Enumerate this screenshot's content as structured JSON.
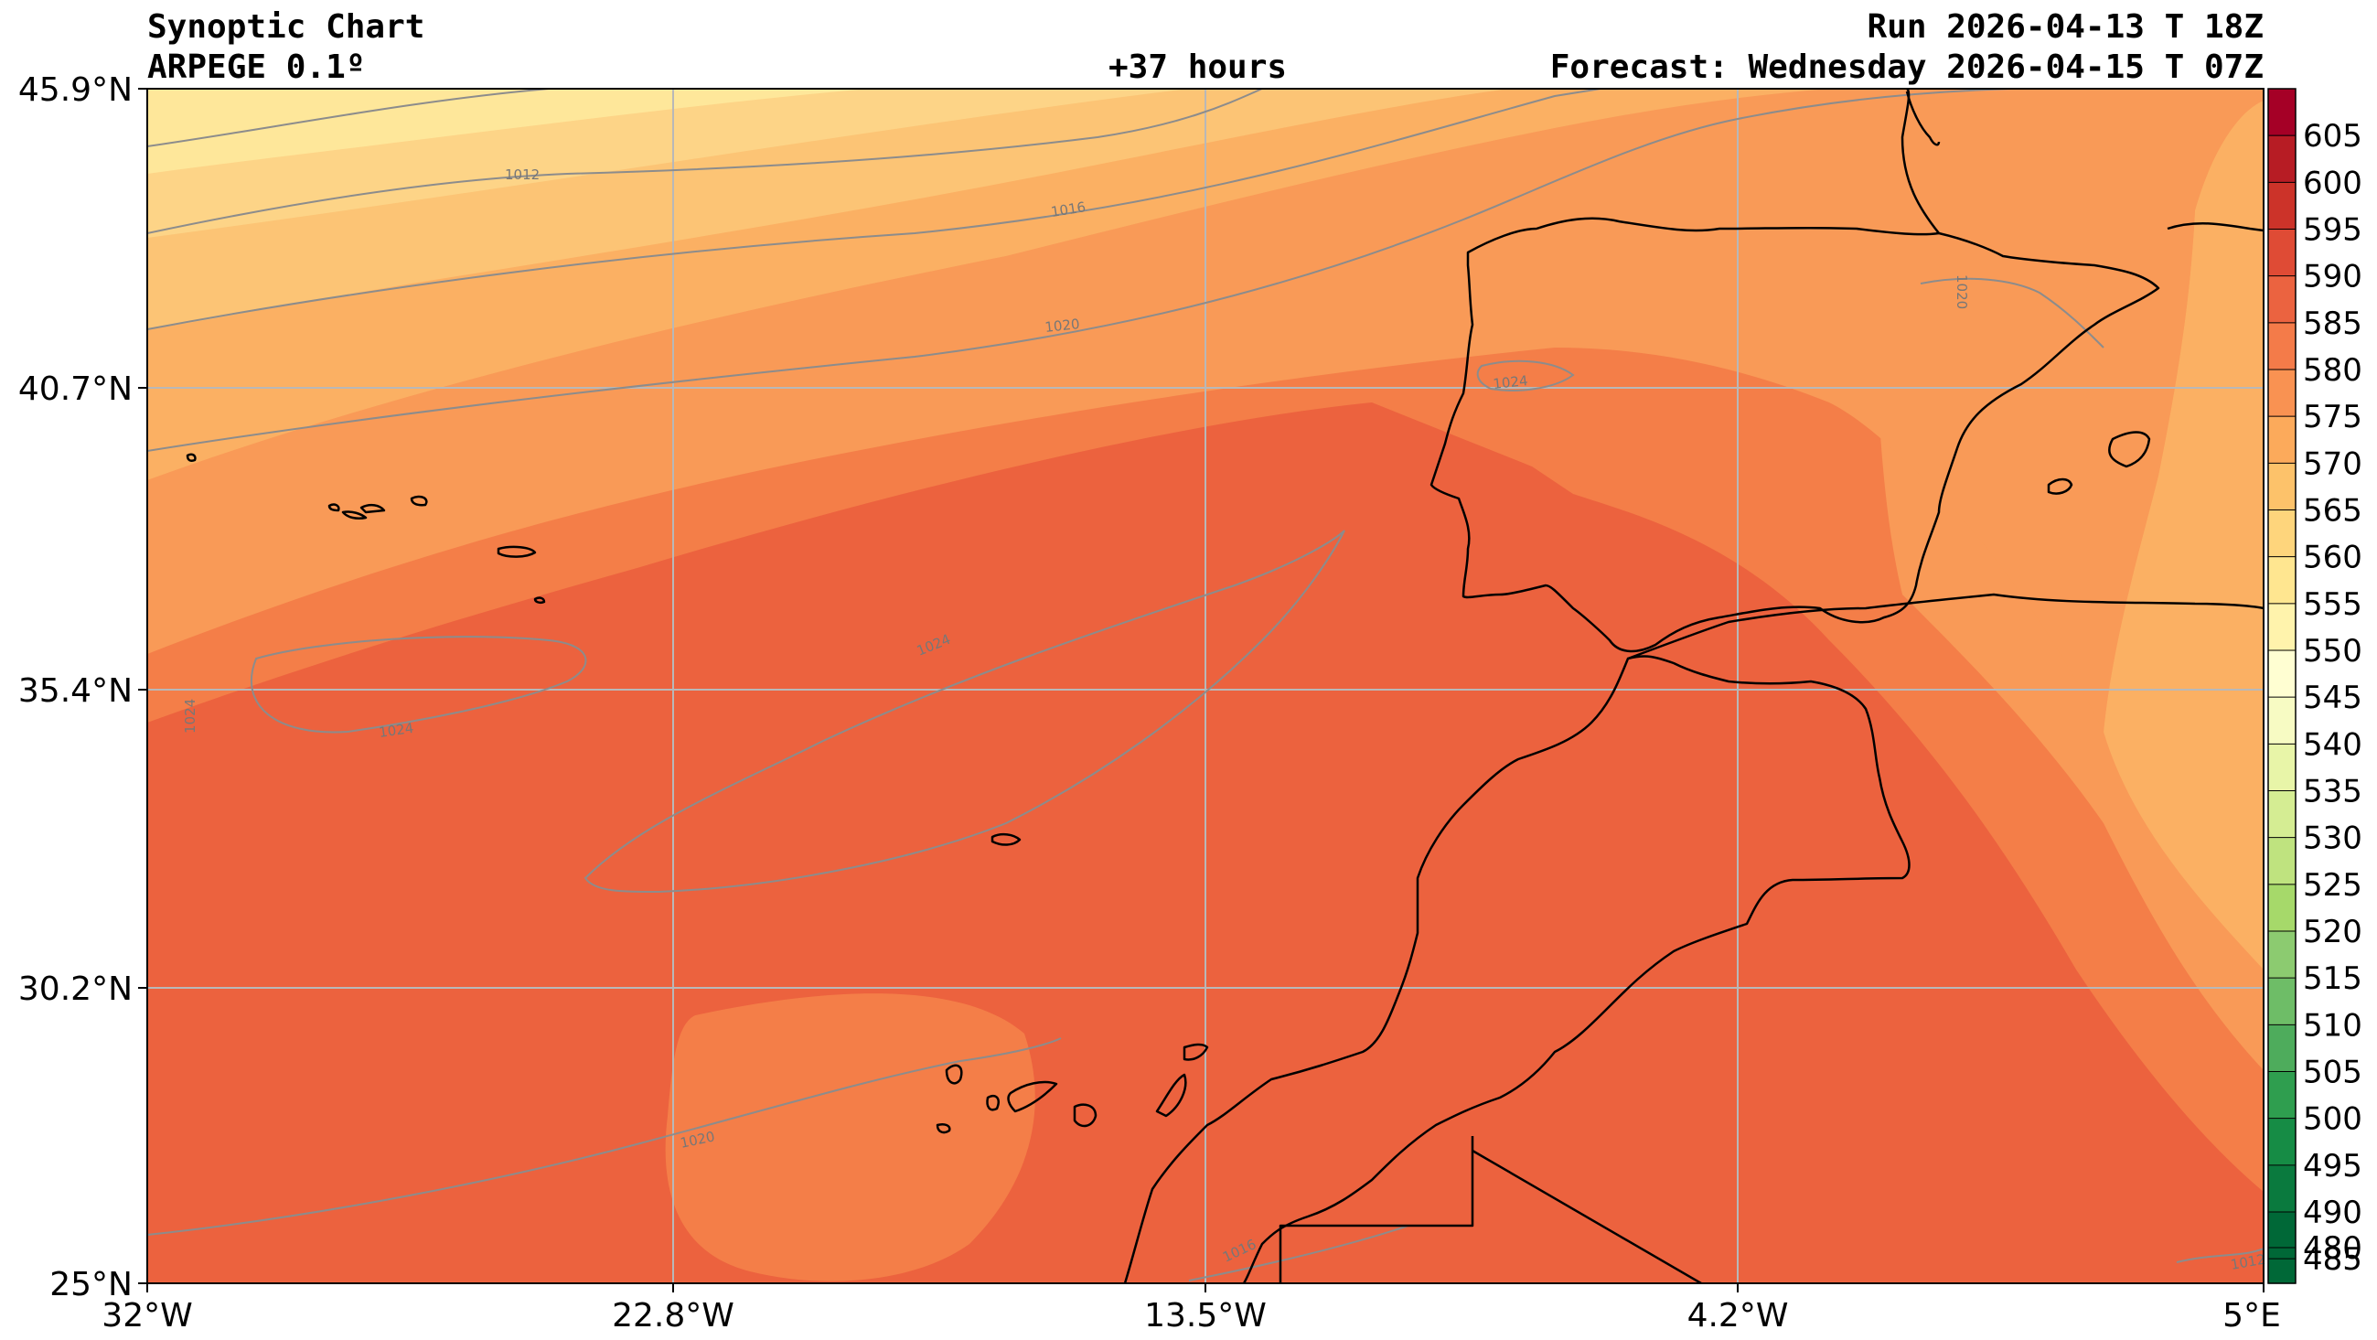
{
  "header": {
    "title": "Synoptic Chart",
    "model": "ARPEGE 0.1º",
    "lead": "+37 hours",
    "run": "Run 2026-04-13 T 18Z",
    "forecast": "Forecast: Wednesday 2026-04-15 T 07Z"
  },
  "axes": {
    "lat_labels": [
      "45.9°N",
      "40.7°N",
      "35.4°N",
      "30.2°N",
      "25°N"
    ],
    "lon_labels": [
      "32°W",
      "22.8°W",
      "13.5°W",
      "4.2°W",
      "5°E"
    ],
    "lat_values": [
      45.9,
      40.7,
      35.4,
      30.2,
      25.0
    ],
    "lon_values": [
      -32.0,
      -22.8,
      -13.5,
      -4.2,
      5.0
    ],
    "grid": true
  },
  "colorbar": {
    "ticks": [
      "605",
      "600",
      "595",
      "590",
      "585",
      "580",
      "575",
      "570",
      "565",
      "560",
      "555",
      "550",
      "545",
      "540",
      "535",
      "530",
      "525",
      "520",
      "515",
      "510",
      "505",
      "500",
      "495",
      "490",
      "485",
      "480"
    ],
    "palette": [
      "#006837",
      "#0a7a3e",
      "#168c45",
      "#2f9e4f",
      "#4eac5c",
      "#6ebd67",
      "#8ccb70",
      "#a6d96a",
      "#bfe37f",
      "#d5ed93",
      "#e8f5a8",
      "#f7fbc3",
      "#fffed2",
      "#fff3ac",
      "#ffe690",
      "#fed57c",
      "#fdc26a",
      "#fcaa5b",
      "#f99252",
      "#f47b49",
      "#eb6340",
      "#df4b35",
      "#cc3329",
      "#b71c24",
      "#a50026"
    ]
  },
  "isobars": [
    {
      "label": "1012"
    },
    {
      "label": "1016"
    },
    {
      "label": "1020"
    },
    {
      "label": "1024"
    },
    {
      "label": "1024"
    },
    {
      "label": "1024"
    },
    {
      "label": "1024"
    },
    {
      "label": "1020"
    },
    {
      "label": "1016"
    },
    {
      "label": "1020"
    },
    {
      "label": "1012"
    }
  ],
  "colors": {
    "fill_550": "#fee79a",
    "fill_555": "#fdd487",
    "fill_560": "#fcc475",
    "fill_565": "#fbb063",
    "fill_570": "#f99a57",
    "fill_575": "#f47e48",
    "fill_580": "#ec623e",
    "isobar": "#8c8c8c",
    "coast": "#000000",
    "grid": "#b8b8b8"
  }
}
